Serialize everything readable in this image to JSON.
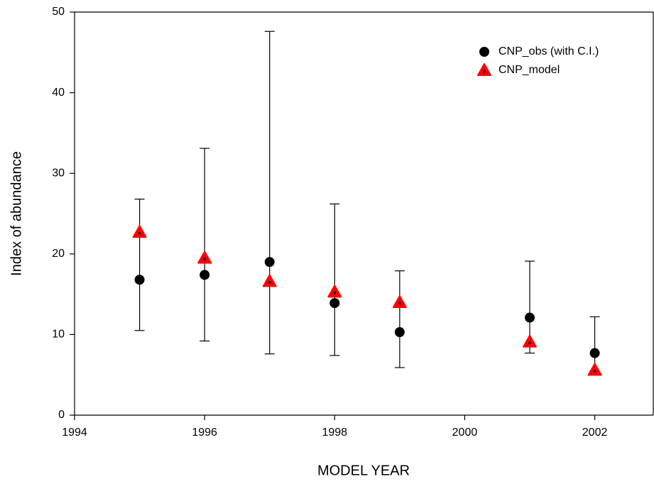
{
  "chart_data": {
    "type": "scatter",
    "x_label": "MODEL YEAR",
    "y_label": "Index of abundance",
    "x": [
      1995,
      1996,
      1997,
      1998,
      1999,
      2001,
      2002
    ],
    "series": [
      {
        "name": "CNP_obs (with C.I.)",
        "color": "#000000",
        "marker": "circle",
        "values": [
          16.8,
          17.4,
          19.0,
          13.9,
          10.3,
          12.1,
          7.7
        ],
        "ci_lower": [
          10.5,
          9.2,
          7.6,
          7.4,
          5.9,
          7.7,
          5.5
        ],
        "ci_upper": [
          26.8,
          33.1,
          47.6,
          26.2,
          17.9,
          19.1,
          12.2
        ]
      },
      {
        "name": "CNP_model",
        "color": "#ff0000",
        "marker": "triangle",
        "values": [
          22.7,
          19.5,
          16.6,
          15.3,
          14.0,
          9.1,
          5.6
        ]
      }
    ],
    "xlim": [
      1994,
      2002.9
    ],
    "xticks": [
      1994,
      1996,
      1998,
      2000,
      2002
    ],
    "ylim": [
      0,
      50
    ],
    "yticks": [
      0,
      10,
      20,
      30,
      40,
      50
    ],
    "legend": "upper right",
    "grid": false
  }
}
